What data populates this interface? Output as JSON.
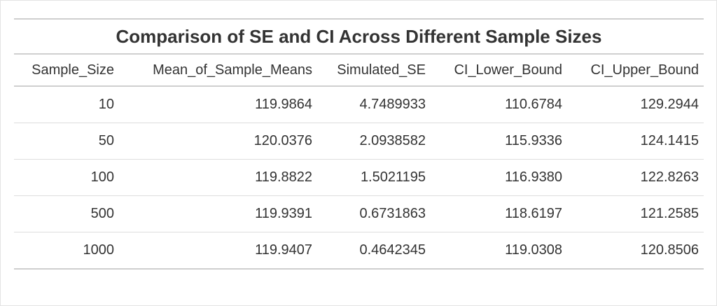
{
  "table": {
    "title": "Comparison of SE and CI Across Different Sample Sizes",
    "columns": [
      "Sample_Size",
      "Mean_of_Sample_Means",
      "Simulated_SE",
      "CI_Lower_Bound",
      "CI_Upper_Bound"
    ],
    "rows": [
      [
        "10",
        "119.9864",
        "4.7489933",
        "110.6784",
        "129.2944"
      ],
      [
        "50",
        "120.0376",
        "2.0938582",
        "115.9336",
        "124.1415"
      ],
      [
        "100",
        "119.8822",
        "1.5021195",
        "116.9380",
        "122.8263"
      ],
      [
        "500",
        "119.9391",
        "0.6731863",
        "118.6197",
        "121.2585"
      ],
      [
        "1000",
        "119.9407",
        "0.4642345",
        "119.0308",
        "120.8506"
      ]
    ]
  },
  "colors": {
    "text": "#333333",
    "rule": "#cfcfcf",
    "row_divider": "#dddddd"
  }
}
